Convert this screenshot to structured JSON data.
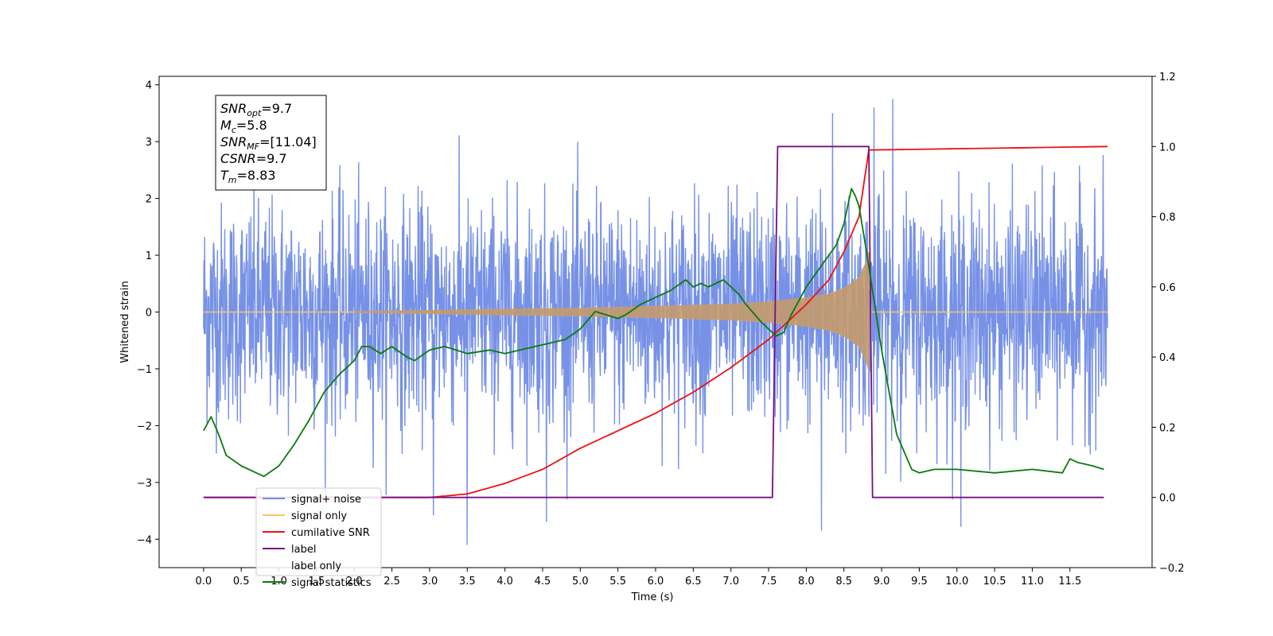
{
  "chart_data": {
    "type": "line",
    "xlabel": "Time (s)",
    "ylabel": "Whitened strain",
    "xlim": [
      -0.59,
      12.59
    ],
    "ylim": [
      -4.5,
      4.15
    ],
    "y2lim": [
      -0.2,
      1.2
    ],
    "grid": false,
    "x_ticks": [
      "0.0",
      "0.5",
      "1.0",
      "1.5",
      "2.0",
      "2.5",
      "3.0",
      "3.5",
      "4.0",
      "4.5",
      "5.0",
      "5.5",
      "6.0",
      "6.5",
      "7.0",
      "7.5",
      "8.0",
      "8.5",
      "9.0",
      "9.5",
      "10.0",
      "10.5",
      "11.0",
      "11.5"
    ],
    "y_ticks": [
      "−4",
      "−3",
      "−2",
      "−1",
      "0",
      "1",
      "2",
      "3",
      "4"
    ],
    "y2_ticks": [
      "−0.2",
      "0.0",
      "0.2",
      "0.4",
      "0.6",
      "0.8",
      "1.0",
      "1.2"
    ],
    "annotation": {
      "lines": [
        {
          "base": "SNR",
          "sub": "opt",
          "rest": "=9.7"
        },
        {
          "base": "M",
          "sub": "c",
          "rest": "=5.8"
        },
        {
          "base": "SNR",
          "sub": "MF",
          "rest": "=[11.04]"
        },
        {
          "base": "CSNR",
          "sub": "",
          "rest": "=9.7"
        },
        {
          "base": "T",
          "sub": "m",
          "rest": "=8.83"
        }
      ]
    },
    "legend": {
      "location": "lower-left",
      "entries": [
        {
          "label": "signal+ noise",
          "color": "#6f8be5"
        },
        {
          "label": "signal only",
          "color": "#ffc262"
        },
        {
          "label": "cumilative SNR",
          "color": "#ee1111"
        },
        {
          "label": "label",
          "color": "#7a0f84"
        },
        {
          "label": "label only",
          "color": "#ffffff"
        },
        {
          "label": "signal statistics",
          "color": "#0a7a0a"
        }
      ]
    },
    "series": [
      {
        "name": "signal+ noise",
        "axis": "left",
        "color": "#6f8be5",
        "t_range": [
          0,
          12
        ],
        "noise_band": [
          -2.5,
          2.6
        ],
        "peak_extremes": [
          {
            "x": 9.15,
            "y": 3.75
          },
          {
            "x": 8.9,
            "y": 3.6
          },
          {
            "x": 8.35,
            "y": 3.5
          },
          {
            "x": 3.5,
            "y": -4.1
          },
          {
            "x": 8.2,
            "y": -3.85
          },
          {
            "x": 10.05,
            "y": -3.78
          },
          {
            "x": 3.05,
            "y": -3.58
          },
          {
            "x": 4.55,
            "y": -3.7
          }
        ]
      },
      {
        "name": "signal only",
        "axis": "left",
        "color": "#ffc262",
        "t_range": [
          0,
          12
        ],
        "chirp_start": 2.0,
        "merger_time": 8.83,
        "envelope": [
          [
            2.0,
            0.01
          ],
          [
            3.0,
            0.03
          ],
          [
            4.0,
            0.05
          ],
          [
            5.0,
            0.07
          ],
          [
            6.0,
            0.1
          ],
          [
            7.0,
            0.14
          ],
          [
            7.5,
            0.18
          ],
          [
            8.0,
            0.25
          ],
          [
            8.3,
            0.32
          ],
          [
            8.5,
            0.42
          ],
          [
            8.7,
            0.6
          ],
          [
            8.8,
            0.9
          ],
          [
            8.83,
            1.05
          ]
        ]
      },
      {
        "name": "cumilative SNR",
        "axis": "right",
        "color": "#ee1111",
        "x": [
          0,
          2.0,
          3.0,
          3.5,
          4.0,
          4.5,
          5.0,
          5.5,
          6.0,
          6.5,
          7.0,
          7.5,
          8.0,
          8.3,
          8.5,
          8.7,
          8.83,
          12.0
        ],
        "y": [
          0.0,
          0.0,
          0.0,
          0.01,
          0.04,
          0.08,
          0.14,
          0.19,
          0.24,
          0.3,
          0.37,
          0.45,
          0.55,
          0.62,
          0.7,
          0.8,
          0.99,
          1.0
        ]
      },
      {
        "name": "label",
        "axis": "right",
        "color": "#7a0f84",
        "x": [
          0,
          7.55,
          7.62,
          8.83,
          8.88,
          11.95
        ],
        "y": [
          0,
          0,
          1,
          1,
          0,
          0
        ]
      },
      {
        "name": "signal statistics",
        "axis": "right",
        "color": "#0a7a0a",
        "x": [
          0,
          0.05,
          0.1,
          0.2,
          0.3,
          0.5,
          0.7,
          0.8,
          1.0,
          1.2,
          1.4,
          1.6,
          1.8,
          2.0,
          2.1,
          2.2,
          2.35,
          2.5,
          2.7,
          2.8,
          3.0,
          3.2,
          3.5,
          3.8,
          4.0,
          4.2,
          4.4,
          4.6,
          4.8,
          5.0,
          5.2,
          5.5,
          5.6,
          5.8,
          6.0,
          6.2,
          6.4,
          6.5,
          6.6,
          6.7,
          6.8,
          6.9,
          7.0,
          7.1,
          7.2,
          7.4,
          7.5,
          7.6,
          7.7,
          7.8,
          8.0,
          8.2,
          8.4,
          8.5,
          8.6,
          8.65,
          8.7,
          8.8,
          9.0,
          9.2,
          9.4,
          9.5,
          9.7,
          10.0,
          10.5,
          11.0,
          11.4,
          11.5,
          11.6,
          11.8,
          11.95
        ],
        "y": [
          0.19,
          0.21,
          0.23,
          0.18,
          0.12,
          0.09,
          0.07,
          0.06,
          0.09,
          0.15,
          0.22,
          0.3,
          0.35,
          0.39,
          0.43,
          0.43,
          0.41,
          0.43,
          0.4,
          0.39,
          0.42,
          0.43,
          0.41,
          0.42,
          0.41,
          0.42,
          0.43,
          0.44,
          0.45,
          0.48,
          0.53,
          0.51,
          0.52,
          0.55,
          0.57,
          0.59,
          0.62,
          0.6,
          0.61,
          0.6,
          0.61,
          0.62,
          0.6,
          0.58,
          0.55,
          0.5,
          0.48,
          0.46,
          0.47,
          0.52,
          0.6,
          0.66,
          0.72,
          0.78,
          0.88,
          0.86,
          0.83,
          0.7,
          0.42,
          0.18,
          0.08,
          0.07,
          0.08,
          0.08,
          0.07,
          0.08,
          0.07,
          0.11,
          0.1,
          0.09,
          0.08
        ]
      }
    ]
  }
}
